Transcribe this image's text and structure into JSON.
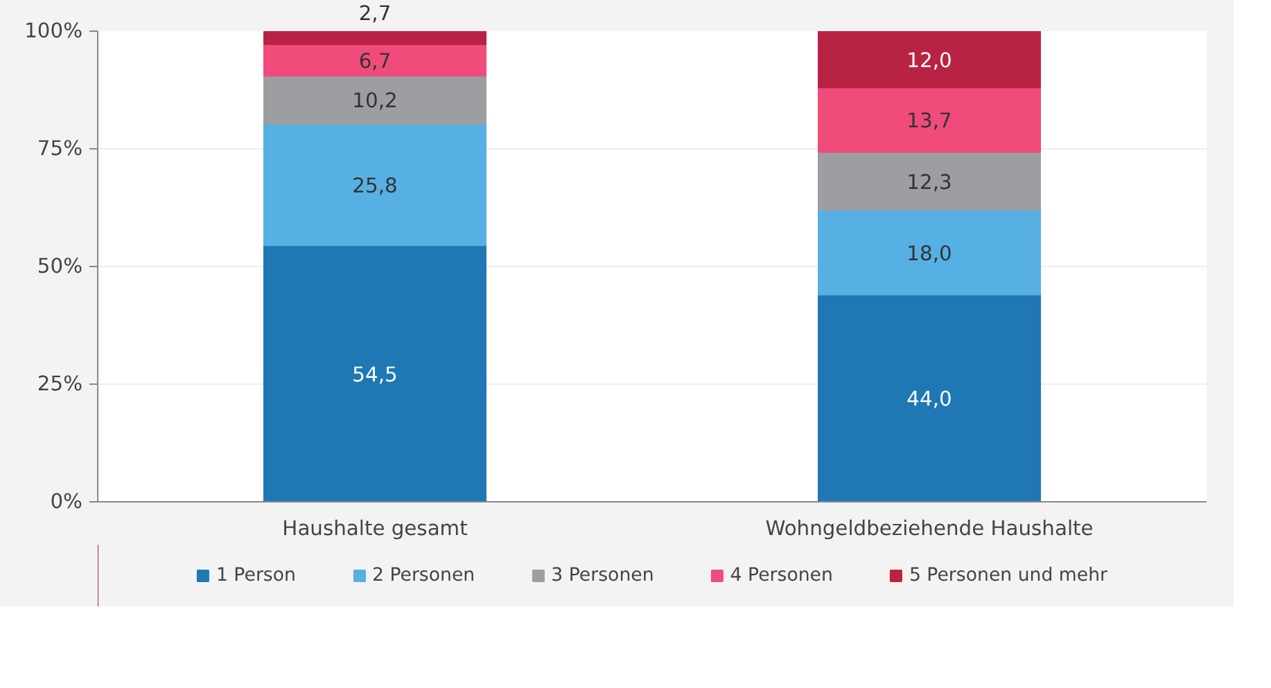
{
  "chart_data": {
    "type": "bar",
    "stacked": true,
    "categories": [
      "Haushalte gesamt",
      "Wohngeldbeziehende Haushalte"
    ],
    "series": [
      {
        "name": "1 Person",
        "color": "#1f77b4",
        "values": [
          54.5,
          44.0
        ],
        "value_labels": [
          "54,5",
          "44,0"
        ]
      },
      {
        "name": "2 Personen",
        "color": "#56b0e3",
        "values": [
          25.8,
          18.0
        ],
        "value_labels": [
          "25,8",
          "18,0"
        ]
      },
      {
        "name": "3 Personen",
        "color": "#9c9ea1",
        "values": [
          10.2,
          12.3
        ],
        "value_labels": [
          "10,2",
          "12,3"
        ]
      },
      {
        "name": "4 Personen",
        "color": "#f04c7b",
        "values": [
          6.7,
          13.7
        ],
        "value_labels": [
          "6,7",
          "13,7"
        ]
      },
      {
        "name": "5 Personen und mehr",
        "color": "#b92343",
        "values": [
          2.7,
          12.0
        ],
        "value_labels": [
          "2,7",
          "12,0"
        ]
      }
    ],
    "ylim": [
      0,
      100
    ],
    "yticks": [
      {
        "value": 0,
        "label": "0%"
      },
      {
        "value": 25,
        "label": "25%"
      },
      {
        "value": 50,
        "label": "50%"
      },
      {
        "value": 75,
        "label": "75%"
      },
      {
        "value": 100,
        "label": "100%"
      }
    ],
    "grid": "y",
    "legend": "bottom"
  }
}
